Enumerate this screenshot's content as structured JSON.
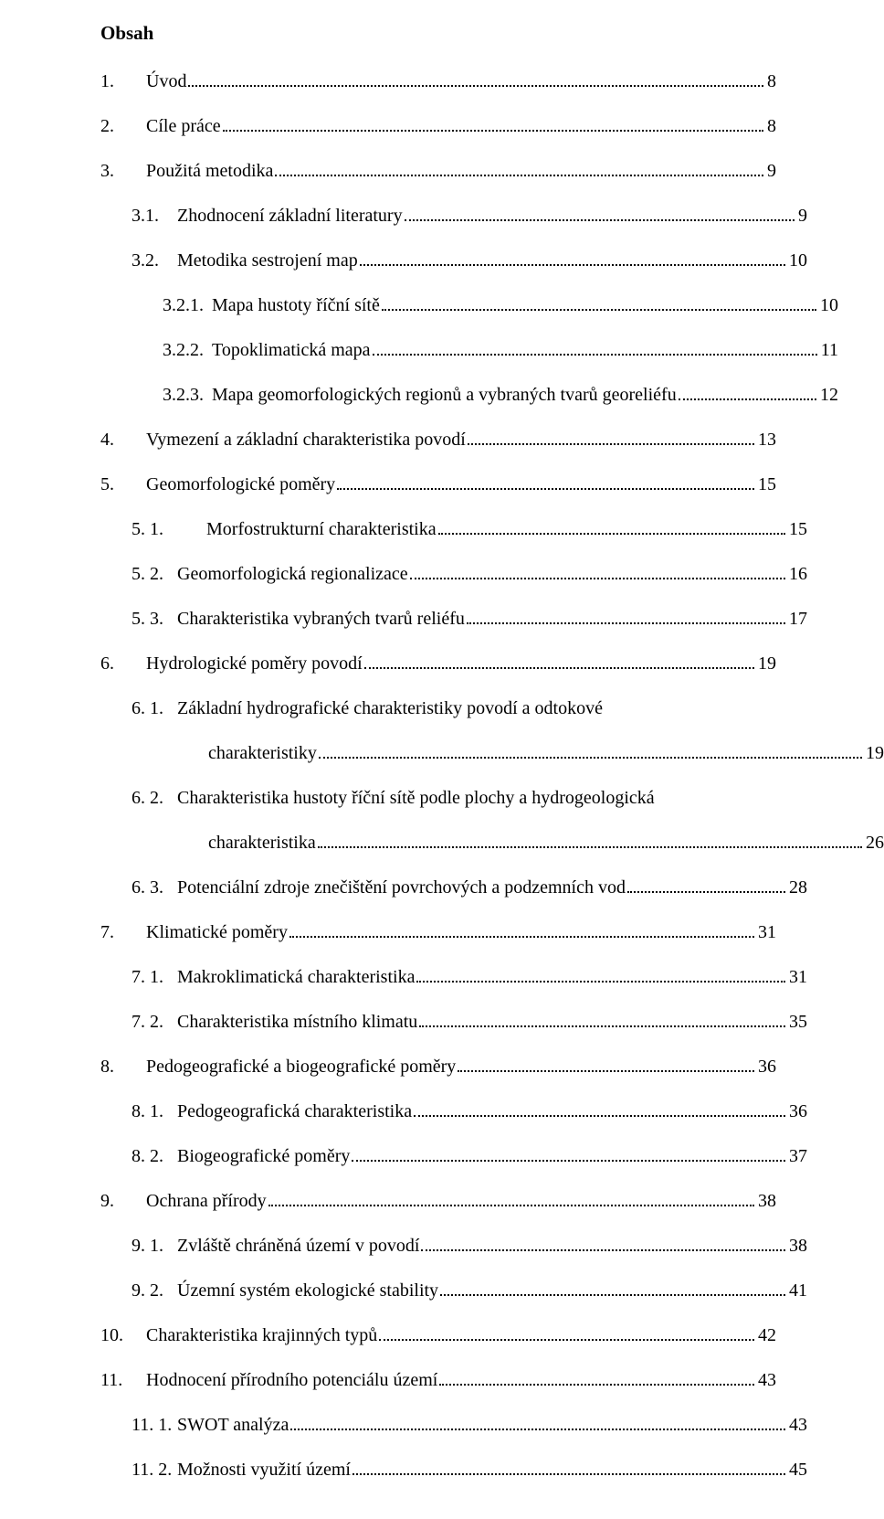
{
  "heading": "Obsah",
  "entries": [
    {
      "level": 0,
      "num": "1.",
      "title": "Úvod",
      "page": "8"
    },
    {
      "level": 0,
      "num": "2.",
      "title": "Cíle práce",
      "page": "8"
    },
    {
      "level": 0,
      "num": "3.",
      "title": "Použitá metodika",
      "page": "9"
    },
    {
      "level": 1,
      "num": "3.1.",
      "title": "Zhodnocení základní literatury",
      "page": "9"
    },
    {
      "level": 1,
      "num": "3.2.",
      "title": "Metodika sestrojení map",
      "page": "10"
    },
    {
      "level": 2,
      "num": "3.2.1.",
      "title": "Mapa hustoty říční sítě",
      "page": "10"
    },
    {
      "level": 2,
      "num": "3.2.2.",
      "title": "Topoklimatická mapa",
      "page": "11"
    },
    {
      "level": 2,
      "num": "3.2.3.",
      "title": "Mapa geomorfologických regionů a vybraných tvarů georeliéfu",
      "page": "12"
    },
    {
      "level": 0,
      "num": "4.",
      "title": "Vymezení a základní charakteristika povodí",
      "page": "13"
    },
    {
      "level": 0,
      "num": "5.",
      "title": "Geomorfologické poměry",
      "page": "15"
    },
    {
      "level": 1,
      "num": "5. 1.",
      "title": "Morfostrukturní charakteristika",
      "page": "15",
      "extraNumIndent": true
    },
    {
      "level": 1,
      "num": "5. 2.",
      "title": "Geomorfologická regionalizace",
      "page": "16"
    },
    {
      "level": 1,
      "num": "5. 3.",
      "title": "Charakteristika vybraných tvarů reliéfu",
      "page": "17"
    },
    {
      "level": 0,
      "num": "6.",
      "title": "Hydrologické poměry povodí",
      "page": "19"
    },
    {
      "level": 1,
      "num": "6. 1.",
      "title_line1": "Základní hydrografické charakteristiky povodí a odtokové",
      "title_line2": "charakteristiky",
      "page": "19"
    },
    {
      "level": 1,
      "num": "6. 2.",
      "title_line1": "Charakteristika hustoty říční sítě podle plochy a hydrogeologická",
      "title_line2": "charakteristika",
      "page": "26"
    },
    {
      "level": 1,
      "num": "6. 3.",
      "title": "Potenciální zdroje znečištění povrchových a podzemních vod",
      "page": "28"
    },
    {
      "level": 0,
      "num": "7.",
      "title": "Klimatické poměry",
      "page": "31"
    },
    {
      "level": 1,
      "num": "7. 1.",
      "title": "Makroklimatická charakteristika",
      "page": "31"
    },
    {
      "level": 1,
      "num": "7. 2.",
      "title": "Charakteristika místního klimatu",
      "page": "35"
    },
    {
      "level": 0,
      "num": "8.",
      "title": "Pedogeografické a biogeografické poměry",
      "page": "36"
    },
    {
      "level": 1,
      "num": "8. 1.",
      "title": "Pedogeografická charakteristika",
      "page": "36"
    },
    {
      "level": 1,
      "num": "8. 2.",
      "title": "Biogeografické poměry",
      "page": "37"
    },
    {
      "level": 0,
      "num": "9.",
      "title": "Ochrana přírody",
      "page": "38"
    },
    {
      "level": 1,
      "num": "9. 1.",
      "title": "Zvláště chráněná území v povodí",
      "page": "38"
    },
    {
      "level": 1,
      "num": "9. 2.",
      "title": "Územní systém ekologické stability",
      "page": "41"
    },
    {
      "level": 0,
      "num": "10.",
      "title": "Charakteristika krajinných typů",
      "page": "42"
    },
    {
      "level": 0,
      "num": "11.",
      "title": "Hodnocení přírodního potenciálu území",
      "page": "43"
    },
    {
      "level": 1,
      "num": "11. 1.",
      "title": "SWOT analýza",
      "page": "43"
    },
    {
      "level": 1,
      "num": "11. 2.",
      "title": "Možnosti využití území",
      "page": "45"
    }
  ]
}
